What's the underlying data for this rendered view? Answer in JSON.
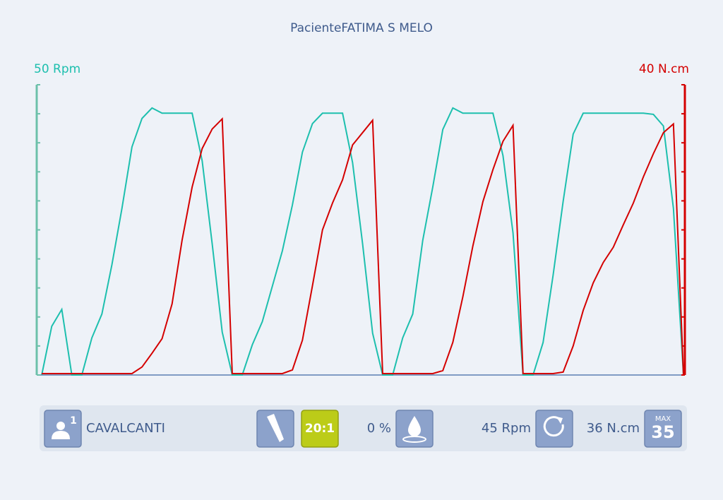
{
  "chart_data": {
    "type": "line",
    "title": "PacienteFATIMA S MELO",
    "y_label": "50 Rpm",
    "y2_label": "40 N.cm",
    "x": [
      0,
      1,
      2,
      3,
      4,
      5,
      6,
      7,
      8,
      9,
      10,
      11,
      12,
      13,
      14,
      15,
      16,
      17,
      18,
      19,
      20,
      21,
      22,
      23,
      24,
      25,
      26,
      27,
      28,
      29,
      30,
      31,
      32,
      33,
      34,
      35,
      36,
      37,
      38,
      39,
      40,
      41,
      42,
      43,
      44,
      45,
      46,
      47,
      48,
      49,
      50,
      51,
      52,
      53,
      54,
      55,
      56,
      57,
      58,
      59,
      60,
      61,
      62,
      63,
      64
    ],
    "xlim": [
      -0.5,
      64
    ],
    "ylim": [
      0,
      50
    ],
    "yticks": [
      0,
      5,
      10,
      15,
      20,
      25,
      30,
      35,
      40,
      45,
      50
    ],
    "y2lim": [
      0,
      40
    ],
    "y2ticks": [
      0,
      4,
      8,
      12,
      16,
      20,
      24,
      28,
      32,
      36,
      40
    ],
    "series": [
      {
        "color": "#1dbfae",
        "values": [
          0,
          8.4,
          11.3,
          0,
          0,
          6.4,
          10.5,
          19,
          28.7,
          39.3,
          44.2,
          46,
          45.1,
          45.1,
          45.1,
          45.1,
          36.9,
          22.6,
          7.4,
          0,
          0,
          5.2,
          9.2,
          15.3,
          21.4,
          29.3,
          38.4,
          43.3,
          45.1,
          45.1,
          45.1,
          36.6,
          22.6,
          7.2,
          0,
          0,
          6.4,
          10.5,
          23.2,
          32.4,
          42.3,
          46,
          45.1,
          45.1,
          45.1,
          45.1,
          37.8,
          24.5,
          0,
          0,
          5.6,
          17.2,
          29.9,
          41.5,
          45.1,
          45.1,
          45.1,
          45.1,
          45.1,
          45.1,
          45.1,
          44.9,
          42.9,
          28.7,
          0
        ]
      },
      {
        "color": "#d40000",
        "axis": "y2",
        "values": [
          0.2,
          0.2,
          0.2,
          0.2,
          0.2,
          0.2,
          0.2,
          0.2,
          0.2,
          0.2,
          1.1,
          3,
          5,
          9.8,
          18.6,
          25.9,
          31.2,
          33.9,
          35.3,
          0.2,
          0.2,
          0.2,
          0.2,
          0.2,
          0.2,
          0.7,
          4.8,
          12.3,
          20,
          23.7,
          26.9,
          31.7,
          33.4,
          35.1,
          0.2,
          0.2,
          0.2,
          0.2,
          0.2,
          0.2,
          0.6,
          4.5,
          10.8,
          17.8,
          23.9,
          28.3,
          32.2,
          34.4,
          0.2,
          0.2,
          0.2,
          0.2,
          0.4,
          4,
          8.9,
          12.7,
          15.5,
          17.6,
          20.7,
          23.7,
          27.3,
          30.5,
          33.4,
          34.6,
          0
        ]
      }
    ]
  },
  "toolbar": {
    "user_badge": "1",
    "user": "CAVALCANTI",
    "ratio": "20:1",
    "irrigation": "0 %",
    "speed": "45 Rpm",
    "torque": "36 N.cm",
    "max_label": "MAX",
    "max_value": "35"
  }
}
